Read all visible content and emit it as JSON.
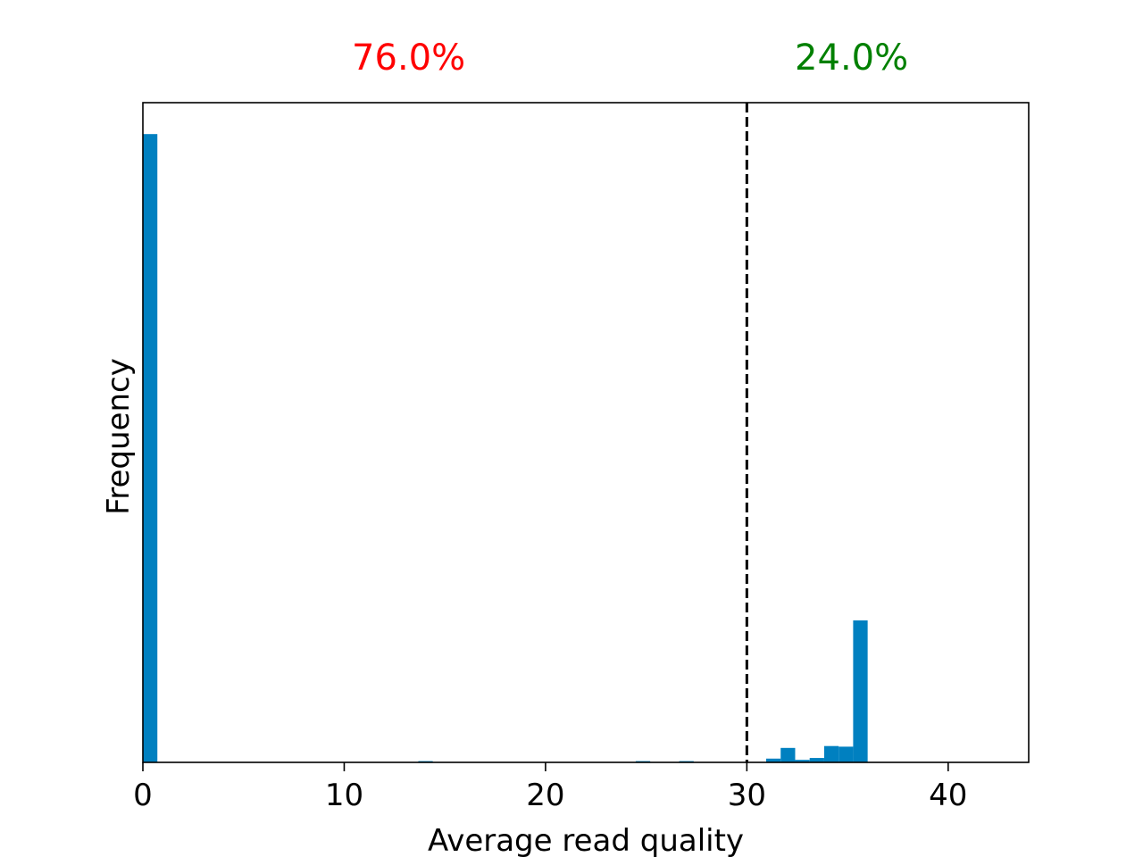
{
  "chart_data": {
    "type": "bar",
    "xlabel": "Average read quality",
    "ylabel": "Frequency",
    "xlim": [
      0,
      44
    ],
    "ylim": [
      0,
      1.05
    ],
    "xticks": [
      0,
      10,
      20,
      30,
      40
    ],
    "y_tick_labels_shown": false,
    "grid": false,
    "bar_color": "#0080c0",
    "bin_width": 0.72,
    "bins": [
      {
        "x": 0.0,
        "value": 1.0
      },
      {
        "x": 13.68,
        "value": 0.002
      },
      {
        "x": 24.48,
        "value": 0.002
      },
      {
        "x": 26.64,
        "value": 0.002
      },
      {
        "x": 30.96,
        "value": 0.006
      },
      {
        "x": 31.68,
        "value": 0.023
      },
      {
        "x": 32.4,
        "value": 0.004
      },
      {
        "x": 33.12,
        "value": 0.007
      },
      {
        "x": 33.84,
        "value": 0.026
      },
      {
        "x": 34.56,
        "value": 0.025
      },
      {
        "x": 35.28,
        "value": 0.226
      }
    ],
    "threshold": {
      "x": 30,
      "style": "dashed",
      "color": "#000000"
    },
    "annotations": [
      {
        "text": "76.0%",
        "color": "#ff0000",
        "x": 13.2
      },
      {
        "text": "24.0%",
        "color": "#008000",
        "x": 35.2
      }
    ]
  }
}
